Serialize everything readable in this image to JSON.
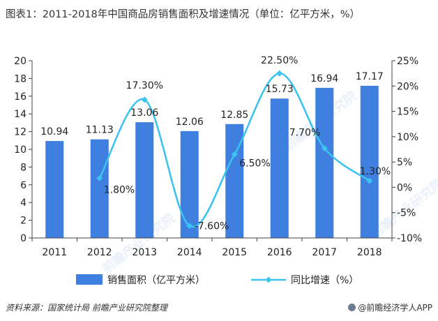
{
  "title": "图表1：2011-2018年中国商品房销售面积及增速情况（单位：亿平方米，%）",
  "source": "资料来源：国家统计局  前瞻产业研究院整理",
  "credit": "@前瞻经济学人APP",
  "watermark": "前瞻产业研究院",
  "colors": {
    "bar": "#3e7fe0",
    "line": "#3cc3f0",
    "axis": "#404040",
    "text": "#222222"
  },
  "chart_data": {
    "type": "bar",
    "categories": [
      "2011",
      "2012",
      "2013",
      "2014",
      "2015",
      "2016",
      "2017",
      "2018"
    ],
    "series": [
      {
        "name": "销售面积（亿平方米）",
        "type": "bar",
        "axis": "left",
        "values": [
          10.94,
          11.13,
          13.06,
          12.06,
          12.85,
          15.73,
          16.94,
          17.17
        ],
        "labels": [
          "10.94",
          "11.13",
          "13.06",
          "12.06",
          "12.85",
          "15.73",
          "16.94",
          "17.17"
        ]
      },
      {
        "name": "同比增速（%）",
        "type": "line",
        "smooth": true,
        "axis": "right",
        "values": [
          null,
          1.8,
          17.3,
          -7.6,
          6.5,
          22.5,
          7.7,
          1.3
        ],
        "labels": [
          null,
          "1.80%",
          "17.30%",
          "-7.60%",
          "6.50%",
          "22.50%",
          "7.70%",
          "1.30%"
        ]
      }
    ],
    "y_left": {
      "range": [
        0,
        20
      ],
      "ticks": [
        "0",
        "2",
        "4",
        "6",
        "8",
        "10",
        "12",
        "14",
        "16",
        "18",
        "20"
      ]
    },
    "y_right": {
      "range": [
        -10,
        25
      ],
      "ticks": [
        "-10%",
        "-5%",
        "0%",
        "5%",
        "10%",
        "15%",
        "20%",
        "25%"
      ]
    },
    "grid": false,
    "legend": "bottom"
  }
}
